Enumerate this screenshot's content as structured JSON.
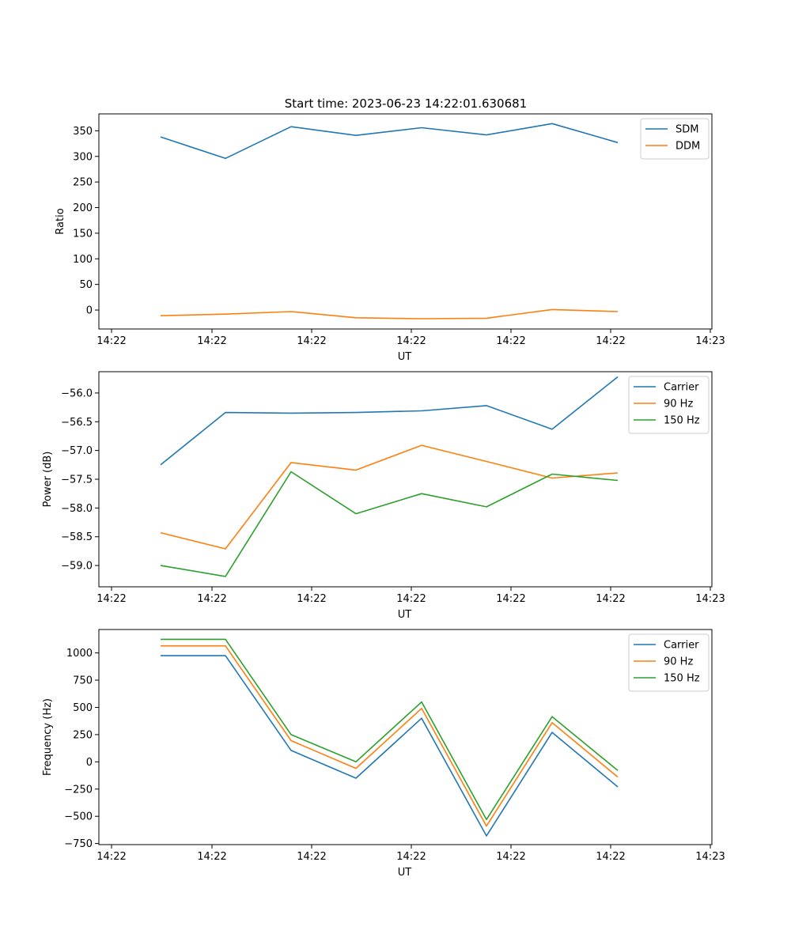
{
  "title": "Start time: 2023-06-23 14:22:01.630681",
  "colors": {
    "blue": "#1f77b4",
    "orange": "#ff7f0e",
    "green": "#2ca02c"
  },
  "chart_data": [
    {
      "type": "line",
      "xlabel": "UT",
      "ylabel": "Ratio",
      "x_tick_labels": [
        "14:22",
        "14:22",
        "14:22",
        "14:22",
        "14:22",
        "14:22",
        "14:23"
      ],
      "y_ticks": [
        0,
        50,
        100,
        150,
        200,
        250,
        300,
        350
      ],
      "ylim": [
        -37,
        383
      ],
      "legend_position": "upper right",
      "series": [
        {
          "name": "SDM",
          "color": "#1f77b4",
          "values": [
            338,
            296,
            358,
            341,
            356,
            342,
            364,
            327
          ]
        },
        {
          "name": "DDM",
          "color": "#ff7f0e",
          "values": [
            -11,
            -8,
            -3,
            -15,
            -17,
            -16,
            1,
            -3
          ]
        }
      ]
    },
    {
      "type": "line",
      "xlabel": "UT",
      "ylabel": "Power (dB)",
      "x_tick_labels": [
        "14:22",
        "14:22",
        "14:22",
        "14:22",
        "14:22",
        "14:22",
        "14:23"
      ],
      "y_ticks": [
        -59.0,
        -58.5,
        -58.0,
        -57.5,
        -57.0,
        -56.5,
        -56.0
      ],
      "y_tick_labels": [
        "−59.0",
        "−58.5",
        "−58.0",
        "−57.5",
        "−57.0",
        "−56.5",
        "−56.0"
      ],
      "ylim": [
        -59.37,
        -55.63
      ],
      "legend_position": "upper right",
      "series": [
        {
          "name": "Carrier",
          "color": "#1f77b4",
          "values": [
            -57.25,
            -56.34,
            -56.35,
            -56.34,
            -56.31,
            -56.22,
            -56.63,
            -55.72
          ]
        },
        {
          "name": "90 Hz",
          "color": "#ff7f0e",
          "values": [
            -58.43,
            -58.71,
            -57.21,
            -57.34,
            -56.91,
            -57.19,
            -57.48,
            -57.39
          ]
        },
        {
          "name": "150 Hz",
          "color": "#2ca02c",
          "values": [
            -59.0,
            -59.19,
            -57.37,
            -58.1,
            -57.75,
            -57.98,
            -57.41,
            -57.52
          ]
        }
      ]
    },
    {
      "type": "line",
      "xlabel": "UT",
      "ylabel": "Frequency (Hz)",
      "x_tick_labels": [
        "14:22",
        "14:22",
        "14:22",
        "14:22",
        "14:22",
        "14:22",
        "14:23"
      ],
      "y_ticks": [
        -750,
        -500,
        -250,
        0,
        250,
        500,
        750,
        1000
      ],
      "y_tick_labels": [
        "−750",
        "−500",
        "−250",
        "0",
        "250",
        "500",
        "750",
        "1000"
      ],
      "ylim": [
        -760,
        1215
      ],
      "legend_position": "upper right",
      "series": [
        {
          "name": "Carrier",
          "color": "#1f77b4",
          "values": [
            975,
            975,
            105,
            -150,
            400,
            -680,
            270,
            -230
          ]
        },
        {
          "name": "90 Hz",
          "color": "#ff7f0e",
          "values": [
            1065,
            1065,
            195,
            -60,
            490,
            -590,
            360,
            -140
          ]
        },
        {
          "name": "150 Hz",
          "color": "#2ca02c",
          "values": [
            1125,
            1125,
            250,
            0,
            550,
            -530,
            415,
            -80
          ]
        }
      ]
    }
  ]
}
